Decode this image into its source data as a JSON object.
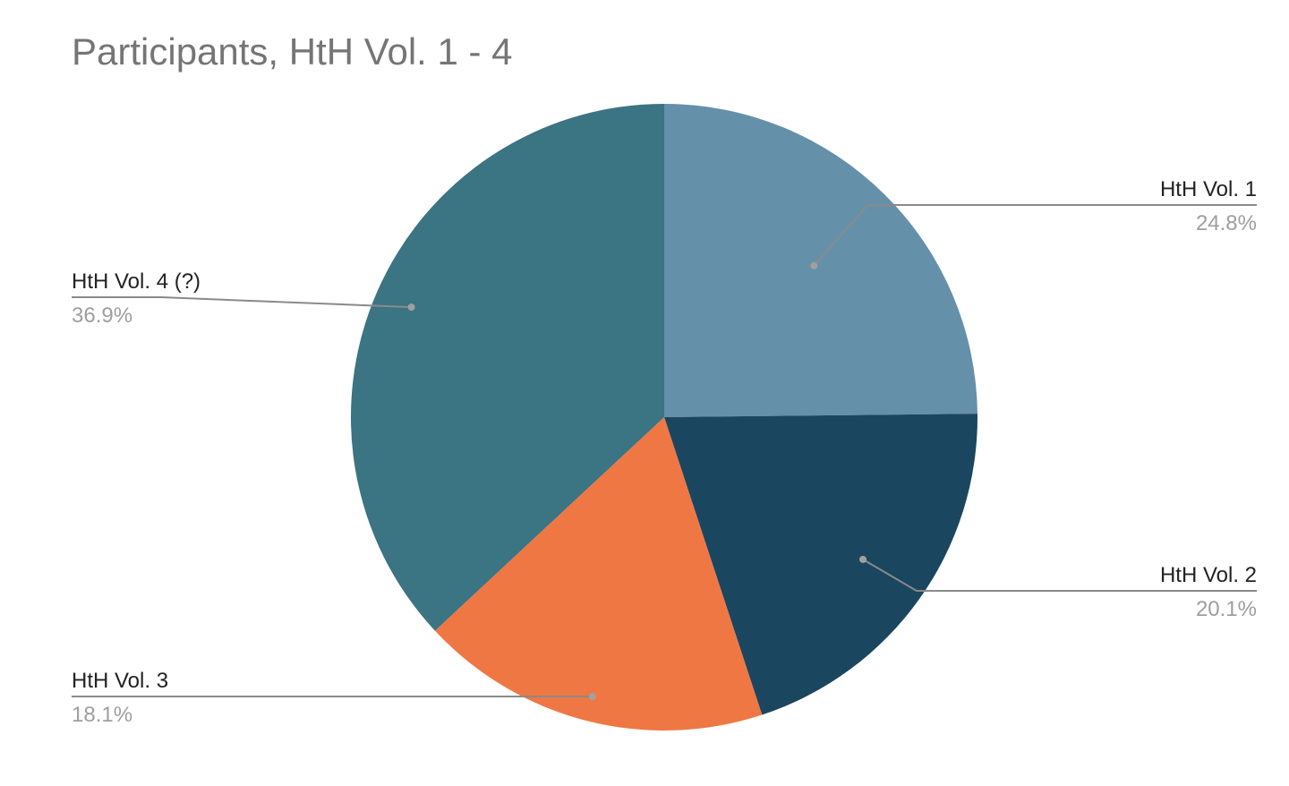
{
  "chart_data": {
    "type": "pie",
    "title": "Participants, HtH Vol. 1 - 4",
    "categories": [
      "HtH Vol. 1",
      "HtH Vol. 2",
      "HtH Vol. 3",
      "HtH Vol. 4 (?)"
    ],
    "values": [
      24.8,
      20.1,
      18.1,
      36.9
    ],
    "value_labels": [
      "24.8%",
      "20.1%",
      "18.1%",
      "36.9%"
    ],
    "colors": [
      "#6590aa",
      "#1b4660",
      "#ef7744",
      "#3b7482"
    ],
    "start_angle": "12 o'clock",
    "direction": "clockwise",
    "legend": "none",
    "labels": "outside with leader lines"
  }
}
